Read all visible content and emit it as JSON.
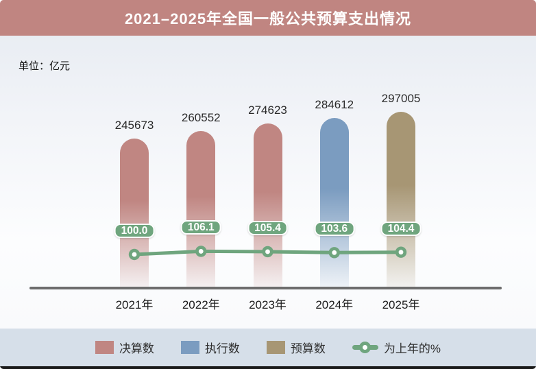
{
  "header": {
    "title": "2021–2025年全国一般公共预算支出情况",
    "background_color": "#c08581"
  },
  "unit_label": "单位：亿元",
  "colors": {
    "final_accounts_bar": "#c08682",
    "execution_bar": "#7b9cc0",
    "budget_bar": "#a79674",
    "line_green": "#6fa57e",
    "axis": "#6d6d6d",
    "legend_strip": "#d6dfe9"
  },
  "chart_data": {
    "type": "bar",
    "title": "2021–2025年全国一般公共预算支出情况",
    "unit": "单位：亿元",
    "categories": [
      "2021年",
      "2022年",
      "2023年",
      "2024年",
      "2025年"
    ],
    "series": [
      {
        "name": "决算数",
        "slug": "final-accounts",
        "type": "bar",
        "color": "#c08682",
        "values": [
          245673,
          260552,
          274623,
          null,
          null
        ]
      },
      {
        "name": "执行数",
        "slug": "execution",
        "type": "bar",
        "color": "#7b9cc0",
        "values": [
          null,
          null,
          null,
          284612,
          null
        ]
      },
      {
        "name": "预算数",
        "slug": "budget",
        "type": "bar",
        "color": "#a79674",
        "values": [
          null,
          null,
          null,
          null,
          297005
        ]
      },
      {
        "name": "为上年的%",
        "slug": "yoy-percent",
        "type": "line",
        "color": "#6fa57e",
        "values": [
          100.0,
          106.1,
          105.4,
          103.6,
          104.4
        ]
      }
    ],
    "legend_position": "bottom",
    "grid": false,
    "xlabel": "",
    "ylabel": "亿元"
  }
}
